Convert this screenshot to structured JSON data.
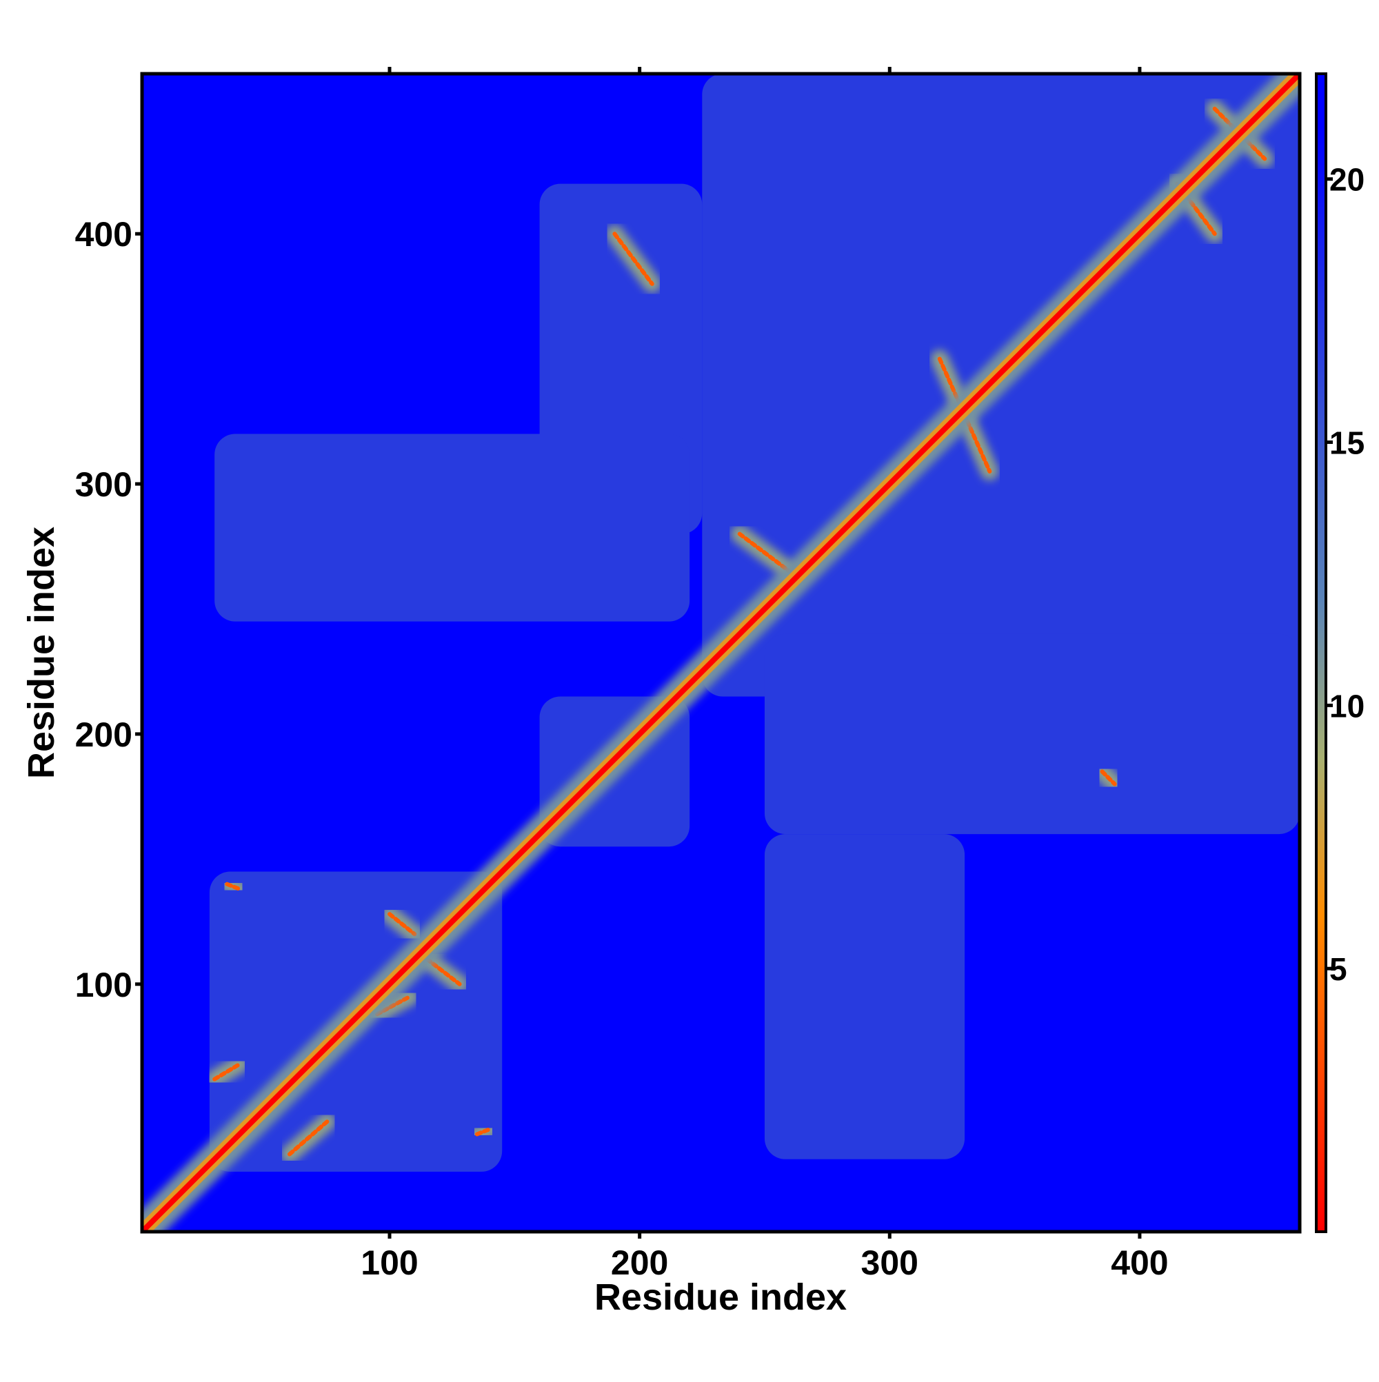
{
  "chart_data": {
    "type": "heatmap",
    "title": "",
    "xlabel": "Residue index",
    "ylabel": "Residue index",
    "xlim": [
      1,
      464
    ],
    "ylim": [
      1,
      464
    ],
    "x_ticks": [
      100,
      200,
      300,
      400
    ],
    "y_ticks": [
      100,
      200,
      300,
      400
    ],
    "x_tick_labels": [
      "100",
      "200",
      "300",
      "400"
    ],
    "y_tick_labels": [
      "100",
      "200",
      "300",
      "400"
    ],
    "colorbar": {
      "range": [
        0,
        22
      ],
      "ticks": [
        5,
        10,
        15,
        20
      ],
      "tick_labels": [
        "5",
        "10",
        "15",
        "20"
      ],
      "colors": [
        "#ff0000",
        "#ff8c00",
        "#a8b070",
        "#5a84b8",
        "#0000ff"
      ],
      "stops": [
        0,
        6,
        9,
        12,
        21
      ]
    },
    "background_value": 21,
    "domain_value": 17,
    "diagonal_value": 0,
    "domains": [
      {
        "x": [
          28,
          145
        ],
        "y": [
          25,
          145
        ]
      },
      {
        "x": [
          160,
          220
        ],
        "y": [
          155,
          215
        ]
      },
      {
        "x": [
          225,
          464
        ],
        "y": [
          215,
          464
        ]
      },
      {
        "x": [
          160,
          225
        ],
        "y": [
          280,
          420
        ]
      },
      {
        "x": [
          30,
          220
        ],
        "y": [
          245,
          320
        ]
      },
      {
        "x": [
          250,
          464
        ],
        "y": [
          160,
          240
        ]
      },
      {
        "x": [
          250,
          330
        ],
        "y": [
          30,
          160
        ]
      }
    ],
    "contact_lines": [
      {
        "from": [
          60,
          32
        ],
        "to": [
          75,
          45
        ]
      },
      {
        "from": [
          30,
          62
        ],
        "to": [
          40,
          68
        ]
      },
      {
        "from": [
          95,
          88
        ],
        "to": [
          108,
          95
        ]
      },
      {
        "from": [
          100,
          128
        ],
        "to": [
          110,
          120
        ]
      },
      {
        "from": [
          115,
          110
        ],
        "to": [
          128,
          100
        ]
      },
      {
        "from": [
          35,
          140
        ],
        "to": [
          40,
          138
        ]
      },
      {
        "from": [
          135,
          40
        ],
        "to": [
          140,
          42
        ]
      },
      {
        "from": [
          415,
          420
        ],
        "to": [
          430,
          400
        ]
      },
      {
        "from": [
          430,
          450
        ],
        "to": [
          450,
          430
        ]
      },
      {
        "from": [
          320,
          350
        ],
        "to": [
          340,
          305
        ]
      },
      {
        "from": [
          240,
          280
        ],
        "to": [
          260,
          265
        ]
      },
      {
        "from": [
          190,
          400
        ],
        "to": [
          205,
          380
        ]
      },
      {
        "from": [
          385,
          185
        ],
        "to": [
          390,
          180
        ]
      }
    ]
  }
}
